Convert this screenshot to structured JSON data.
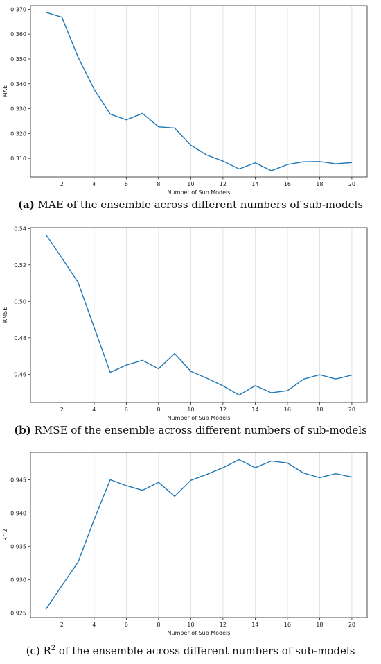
{
  "chart_data": [
    {
      "type": "line",
      "xlabel": "Number of Sub Models",
      "ylabel": "MAE",
      "xlim": [
        0.05,
        20.95
      ],
      "ylim": [
        0.3025,
        0.3715
      ],
      "xticks": [
        2,
        4,
        6,
        8,
        10,
        12,
        14,
        16,
        18,
        20
      ],
      "yticks": [
        0.31,
        0.32,
        0.33,
        0.34,
        0.35,
        0.36,
        0.37
      ],
      "ytick_labels": [
        "0.310",
        "0.320",
        "0.330",
        "0.340",
        "0.350",
        "0.360",
        "0.370"
      ],
      "grid": "vertical",
      "line_color": "#1f77b4",
      "caption_label": "(a)",
      "caption_text": " MAE of the ensemble across different numbers of sub-models",
      "series": [
        {
          "x": [
            1,
            2,
            3,
            4,
            5,
            6,
            7,
            8,
            9,
            10,
            11,
            12,
            13,
            14,
            15,
            16,
            17,
            18,
            19,
            20
          ],
          "values": [
            0.3688,
            0.3668,
            0.3508,
            0.3378,
            0.3278,
            0.3255,
            0.3281,
            0.3227,
            0.3222,
            0.3153,
            0.3113,
            0.3089,
            0.3057,
            0.3082,
            0.305,
            0.3075,
            0.3086,
            0.3087,
            0.3078,
            0.3083
          ]
        }
      ]
    },
    {
      "type": "line",
      "xlabel": "Number of Sub Models",
      "ylabel": "RMSE",
      "xlim": [
        0.05,
        20.95
      ],
      "ylim": [
        0.4445,
        0.5405
      ],
      "xticks": [
        2,
        4,
        6,
        8,
        10,
        12,
        14,
        16,
        18,
        20
      ],
      "yticks": [
        0.46,
        0.48,
        0.5,
        0.52,
        0.54
      ],
      "ytick_labels": [
        "0.46",
        "0.48",
        "0.50",
        "0.52",
        "0.54"
      ],
      "grid": "vertical",
      "line_color": "#1f77b4",
      "caption_label": "(b)",
      "caption_text": " RMSE of the ensemble across different numbers of sub-models",
      "series": [
        {
          "x": [
            1,
            2,
            3,
            4,
            5,
            6,
            7,
            8,
            9,
            10,
            11,
            12,
            13,
            14,
            15,
            16,
            17,
            18,
            19,
            20
          ],
          "values": [
            0.5368,
            0.5238,
            0.5105,
            0.4858,
            0.461,
            0.465,
            0.4676,
            0.463,
            0.4713,
            0.4616,
            0.4578,
            0.4536,
            0.4485,
            0.4537,
            0.4498,
            0.4509,
            0.4573,
            0.4597,
            0.4574,
            0.4595
          ]
        }
      ]
    },
    {
      "type": "line",
      "xlabel": "Number of Sub Models",
      "ylabel": "R^2",
      "xlim": [
        0.05,
        20.95
      ],
      "ylim": [
        0.9243,
        0.9491
      ],
      "xticks": [
        2,
        4,
        6,
        8,
        10,
        12,
        14,
        16,
        18,
        20
      ],
      "yticks": [
        0.925,
        0.93,
        0.935,
        0.94,
        0.945
      ],
      "ytick_labels": [
        "0.925",
        "0.930",
        "0.935",
        "0.940",
        "0.945"
      ],
      "grid": "vertical",
      "line_color": "#1f77b4",
      "caption_label": "(c)",
      "caption_text": " of the ensemble across different numbers of sub-models",
      "caption_r": "R",
      "caption_sup": "2",
      "series": [
        {
          "x": [
            1,
            2,
            3,
            4,
            5,
            6,
            7,
            8,
            9,
            10,
            11,
            12,
            13,
            14,
            15,
            16,
            17,
            18,
            19,
            20
          ],
          "values": [
            0.9255,
            0.9291,
            0.9326,
            0.939,
            0.945,
            0.9441,
            0.9434,
            0.9446,
            0.9425,
            0.9449,
            0.9458,
            0.9468,
            0.948,
            0.9468,
            0.9478,
            0.9475,
            0.946,
            0.9453,
            0.9459,
            0.9454
          ]
        }
      ]
    }
  ]
}
